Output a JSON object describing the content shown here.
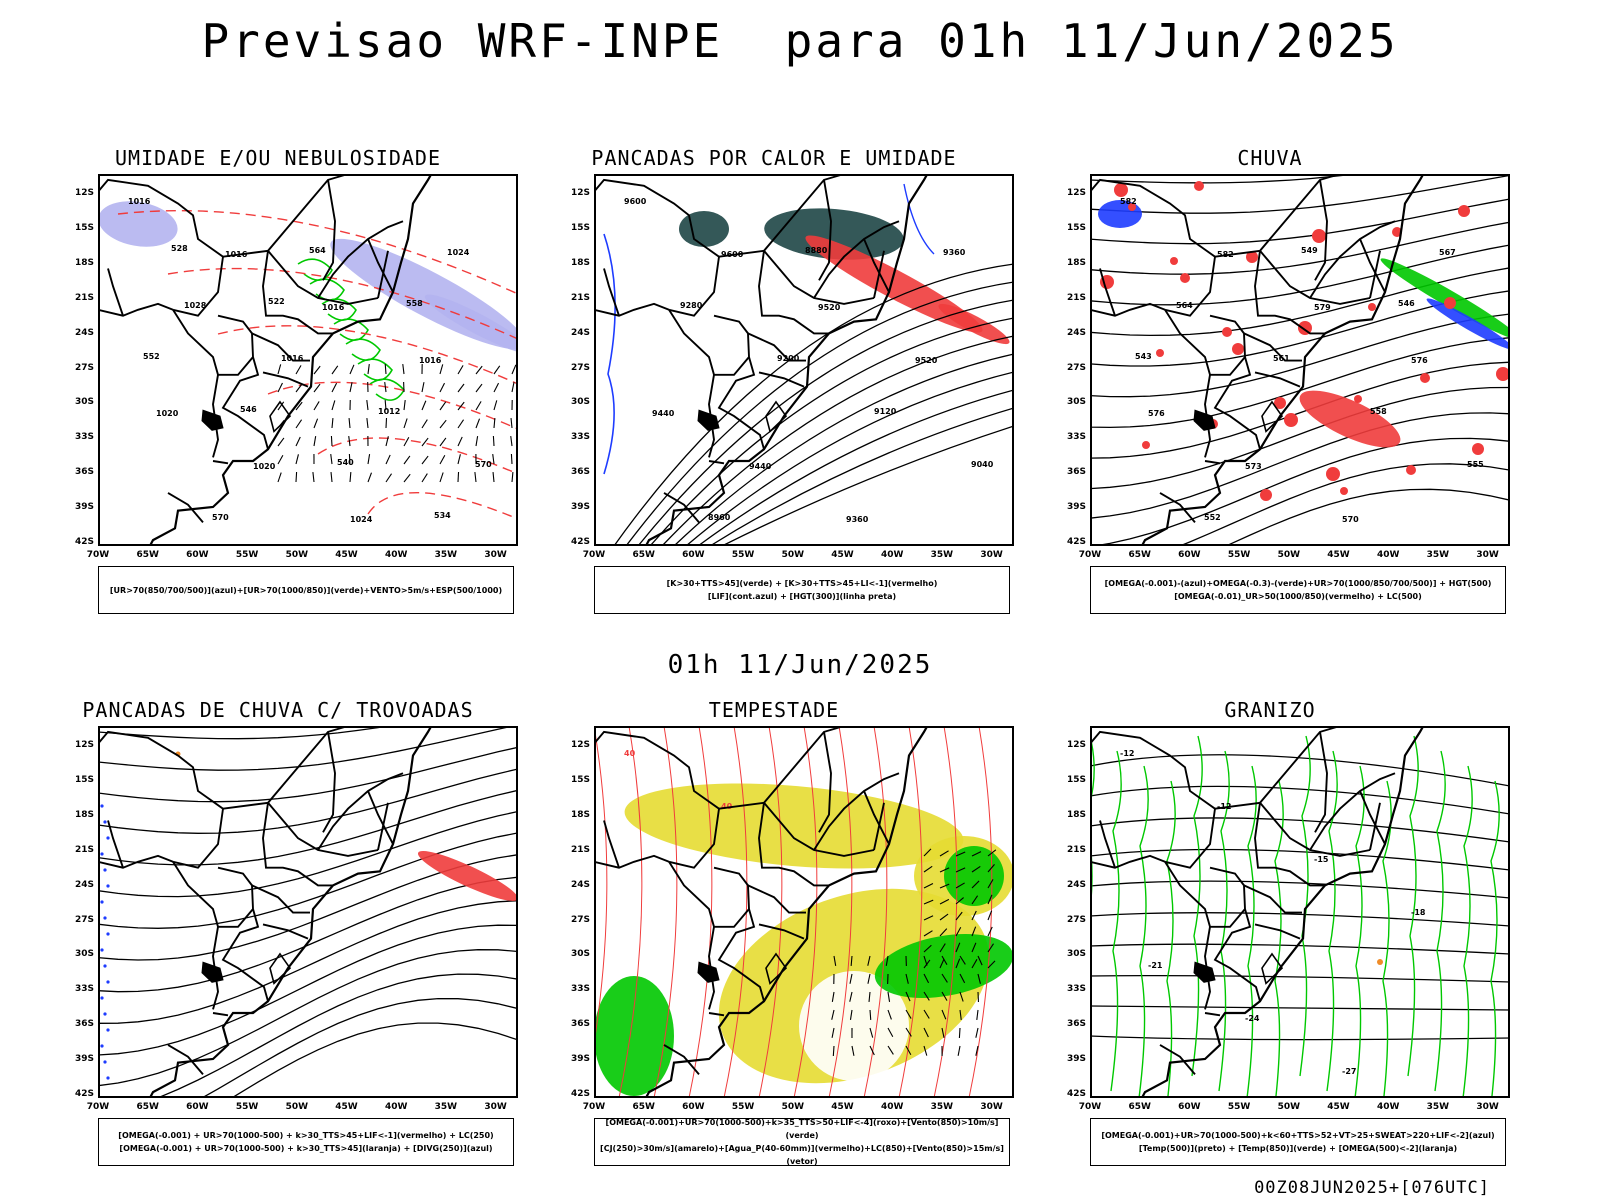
{
  "header": {
    "title": "Previsao WRF-INPE  para 01h 11/Jun/2025",
    "subtitle": "01h 11/Jun/2025"
  },
  "footer": {
    "stamp": "00Z08JUN2025+[076UTC]"
  },
  "axes": {
    "lat_ticks": [
      "12S",
      "15S",
      "18S",
      "21S",
      "24S",
      "27S",
      "30S",
      "33S",
      "36S",
      "39S",
      "42S"
    ],
    "lon_ticks": [
      "70W",
      "65W",
      "60W",
      "55W",
      "50W",
      "45W",
      "40W",
      "35W",
      "30W"
    ]
  },
  "panels": [
    {
      "id": "umidade",
      "title": "UMIDADE E/OU NEBULOSIDADE",
      "legend": [
        "[UR>70(850/700/500)](azul)+[UR>70(1000/850)](verde)+VENTO>5m/s+ESP(500/1000)"
      ],
      "contour_labels": [
        "1016",
        "1016",
        "1016",
        "1016",
        "1020",
        "1020",
        "1024",
        "1024",
        "1028",
        "1016",
        "1012",
        "570",
        "570",
        "564",
        "558",
        "552",
        "546",
        "540",
        "534",
        "528",
        "522"
      ]
    },
    {
      "id": "pancadas-calor",
      "title": "PANCADAS POR CALOR E UMIDADE",
      "legend": [
        "[K>30+TTS>45](verde) + [K>30+TTS>45+LI<-1](vermelho)",
        "[LIF](cont.azul) + [HGT(300)](linha preta)"
      ],
      "contour_labels": [
        "9600",
        "9600",
        "9520",
        "9520",
        "9440",
        "9440",
        "9360",
        "9360",
        "9280",
        "9200",
        "9120",
        "9040",
        "8960",
        "8880"
      ]
    },
    {
      "id": "chuva",
      "title": "CHUVA",
      "legend": [
        "[OMEGA(-0.001)-(azul)+OMEGA(-0.3)-(verde)+UR>70(1000/850/700/500)] + HGT(500)",
        "[OMEGA(-0.01)_UR>50(1000/850)(vermelho) + LC(500)"
      ],
      "contour_labels": [
        "582",
        "582",
        "579",
        "576",
        "576",
        "573",
        "570",
        "567",
        "564",
        "561",
        "558",
        "555",
        "552",
        "549",
        "546",
        "543"
      ]
    },
    {
      "id": "trovoadas",
      "title": "PANCADAS DE CHUVA C/ TROVOADAS",
      "legend": [
        "[OMEGA(-0.001) + UR>70(1000-500) + k>30_TTS>45+LIF<-1](vermelho) + LC(250)",
        "[OMEGA(-0.001) + UR>70(1000-500) + k>30_TTS>45](laranja) + [DIVG(250)](azul)"
      ],
      "contour_labels": []
    },
    {
      "id": "tempestade",
      "title": "TEMPESTADE",
      "legend": [
        "[OMEGA(-0.001)+UR>70(1000-500)+k>35_TTS>50+LIF<-4](roxo)+[Vento(850)>10m/s](verde)",
        "[CJ(250)>30m/s](amarelo)+[Agua_P(40-60mm)](vermelho)+LC(850)+[Vento(850)>15m/s](vetor)"
      ],
      "contour_labels": [
        "40",
        "40"
      ]
    },
    {
      "id": "granizo",
      "title": "GRANIZO",
      "legend": [
        "[OMEGA(-0.001)+UR>70(1000-500)+k<60+TTS>52+VT>25+SWEAT>220+LIF<-2](azul)",
        "[Temp(500)](preto) + [Temp(850)](verde) + [OMEGA(500)<-2](laranja)"
      ],
      "contour_labels": [
        "-12",
        "-12",
        "-15",
        "-18",
        "-21",
        "-24",
        "-27"
      ]
    }
  ],
  "colors": {
    "coast": "#000000",
    "wet_blue": "#b4b4f0",
    "wet_green": "#00c800",
    "red": "#f03c3c",
    "dark_teal": "#1e4646",
    "blue": "#1e3cff",
    "yellow": "#e6dc32",
    "orange": "#f08c28"
  }
}
